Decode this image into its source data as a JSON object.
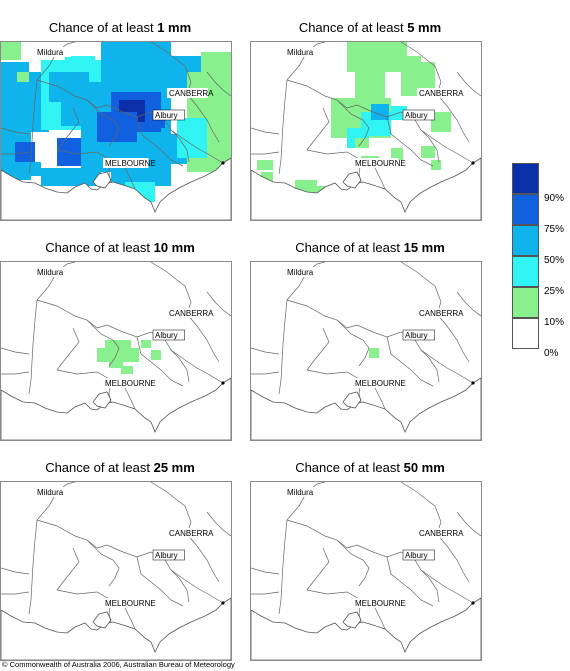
{
  "panels": [
    {
      "title_prefix": "Chance of at least ",
      "amount": "1 mm"
    },
    {
      "title_prefix": "Chance of at least ",
      "amount": "5 mm"
    },
    {
      "title_prefix": "Chance of at least ",
      "amount": "10 mm"
    },
    {
      "title_prefix": "Chance of at least ",
      "amount": "15 mm"
    },
    {
      "title_prefix": "Chance of at least ",
      "amount": "25 mm"
    },
    {
      "title_prefix": "Chance of at least ",
      "amount": "50 mm"
    }
  ],
  "cities": {
    "mildura": "Mildura",
    "canberra": "CANBERRA",
    "albury": "Albury",
    "melbourne": "MELBOURNE"
  },
  "legend": {
    "labels": [
      "90%",
      "75%",
      "50%",
      "25%",
      "10%",
      "0%"
    ],
    "colors": [
      "#0a2fa8",
      "#1060e0",
      "#10b4ec",
      "#30f4f4",
      "#88f08c",
      "#ffffff"
    ]
  },
  "copyright": "© Commonwealth of Australia 2006, Australian Bureau of Meteorology"
}
